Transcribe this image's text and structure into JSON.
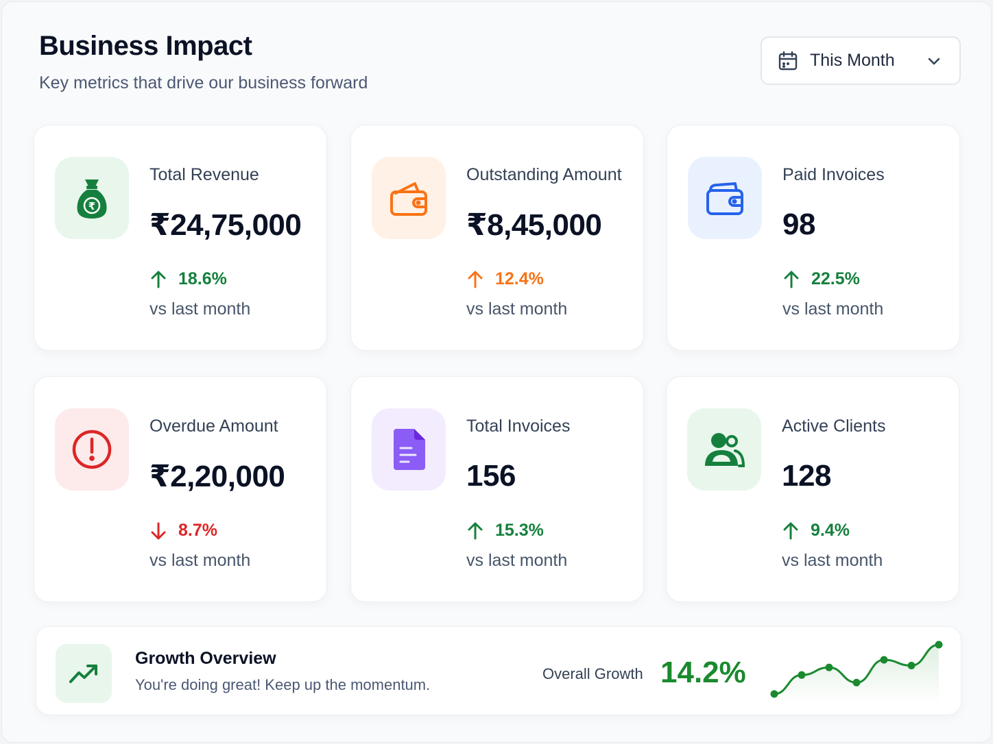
{
  "header": {
    "title": "Business Impact",
    "subtitle": "Key metrics that drive our business forward"
  },
  "range_select": {
    "icon": "calendar-icon",
    "selected": "This Month",
    "chevron": "chevron-down-icon"
  },
  "cards": [
    {
      "label": "Total Revenue",
      "value": "₹24,75,000",
      "change": "18.6%",
      "direction": "up",
      "compare": "vs last month",
      "icon": "money-bag-icon",
      "accent": "#15803d",
      "icon_bg": "#e9f6ec"
    },
    {
      "label": "Outstanding Amount",
      "value": "₹8,45,000",
      "change": "12.4%",
      "direction": "up",
      "compare": "vs last month",
      "icon": "wallet-icon",
      "accent": "#f97316",
      "icon_bg": "#fff1e6"
    },
    {
      "label": "Paid Invoices",
      "value": "98",
      "change": "22.5%",
      "direction": "up",
      "compare": "vs last month",
      "icon": "wallet-icon",
      "accent": "#2563eb",
      "icon_bg": "#eaf1fe"
    },
    {
      "label": "Overdue Amount",
      "value": "₹2,20,000",
      "change": "8.7%",
      "direction": "down",
      "compare": "vs last month",
      "icon": "alert-circle-icon",
      "accent": "#dc2626",
      "icon_bg": "#fdeaea"
    },
    {
      "label": "Total Invoices",
      "value": "156",
      "change": "15.3%",
      "direction": "up",
      "compare": "vs last month",
      "icon": "document-icon",
      "accent": "#7c3aed",
      "icon_bg": "#f2ecfe"
    },
    {
      "label": "Active Clients",
      "value": "128",
      "change": "9.4%",
      "direction": "up",
      "compare": "vs last month",
      "icon": "users-icon",
      "accent": "#15803d",
      "icon_bg": "#e9f6ec"
    }
  ],
  "change_colors": {
    "up_green": "#15803d",
    "up_orange": "#f97316",
    "down_red": "#dc2626"
  },
  "growth": {
    "icon": "trending-up-icon",
    "title": "Growth Overview",
    "subtitle": "You're doing great! Keep up the momentum.",
    "label": "Overall Growth",
    "value": "14.2%",
    "sparkline": [
      4,
      14,
      18,
      10,
      22,
      19,
      30
    ],
    "accent": "#1a8a2e"
  }
}
